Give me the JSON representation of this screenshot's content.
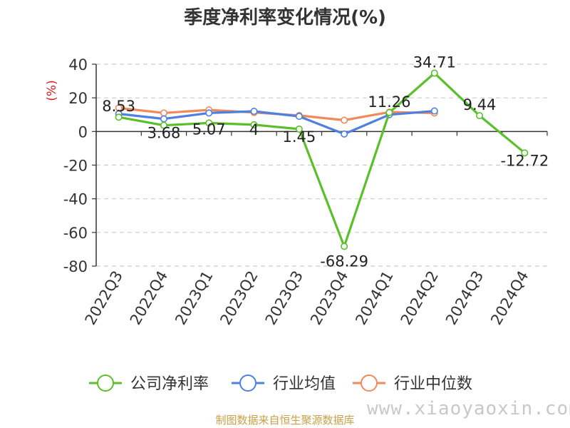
{
  "chart_data": {
    "type": "line",
    "title": "季度净利率变化情况(%)",
    "ylabel": "(%)",
    "xlabel": "",
    "categories": [
      "2022Q3",
      "2022Q4",
      "2023Q1",
      "2023Q2",
      "2023Q3",
      "2023Q4",
      "2024Q1",
      "2024Q2",
      "2024Q3",
      "2024Q4"
    ],
    "ylim": [
      -80,
      40
    ],
    "yticks": [
      40,
      20,
      0,
      -20,
      -40,
      -60,
      -80
    ],
    "grid": true,
    "legend_position": "bottom",
    "series": [
      {
        "name": "公司净利率",
        "color": "#5bbf2a",
        "values": [
          8.53,
          3.68,
          5.07,
          4,
          1.45,
          -68.29,
          11.26,
          34.71,
          9.44,
          -12.72
        ],
        "labels": [
          "8.53",
          "3.68",
          "5.07",
          "4",
          "1.45",
          "-68.29",
          "11.26",
          "34.71",
          "9.44",
          "-12.72"
        ]
      },
      {
        "name": "行业均值",
        "color": "#4f7fe0",
        "values": [
          10.5,
          7.5,
          11.0,
          12.0,
          9.0,
          -1.5,
          10.0,
          12.2,
          null,
          null
        ]
      },
      {
        "name": "行业中位数",
        "color": "#f08a5c",
        "values": [
          14.0,
          11.0,
          12.8,
          11.3,
          9.5,
          6.7,
          11.5,
          11.0,
          null,
          null
        ]
      }
    ]
  },
  "source_text": "制图数据来自恒生聚源数据库",
  "watermark_text": "www.xiaoyaoxin.com"
}
